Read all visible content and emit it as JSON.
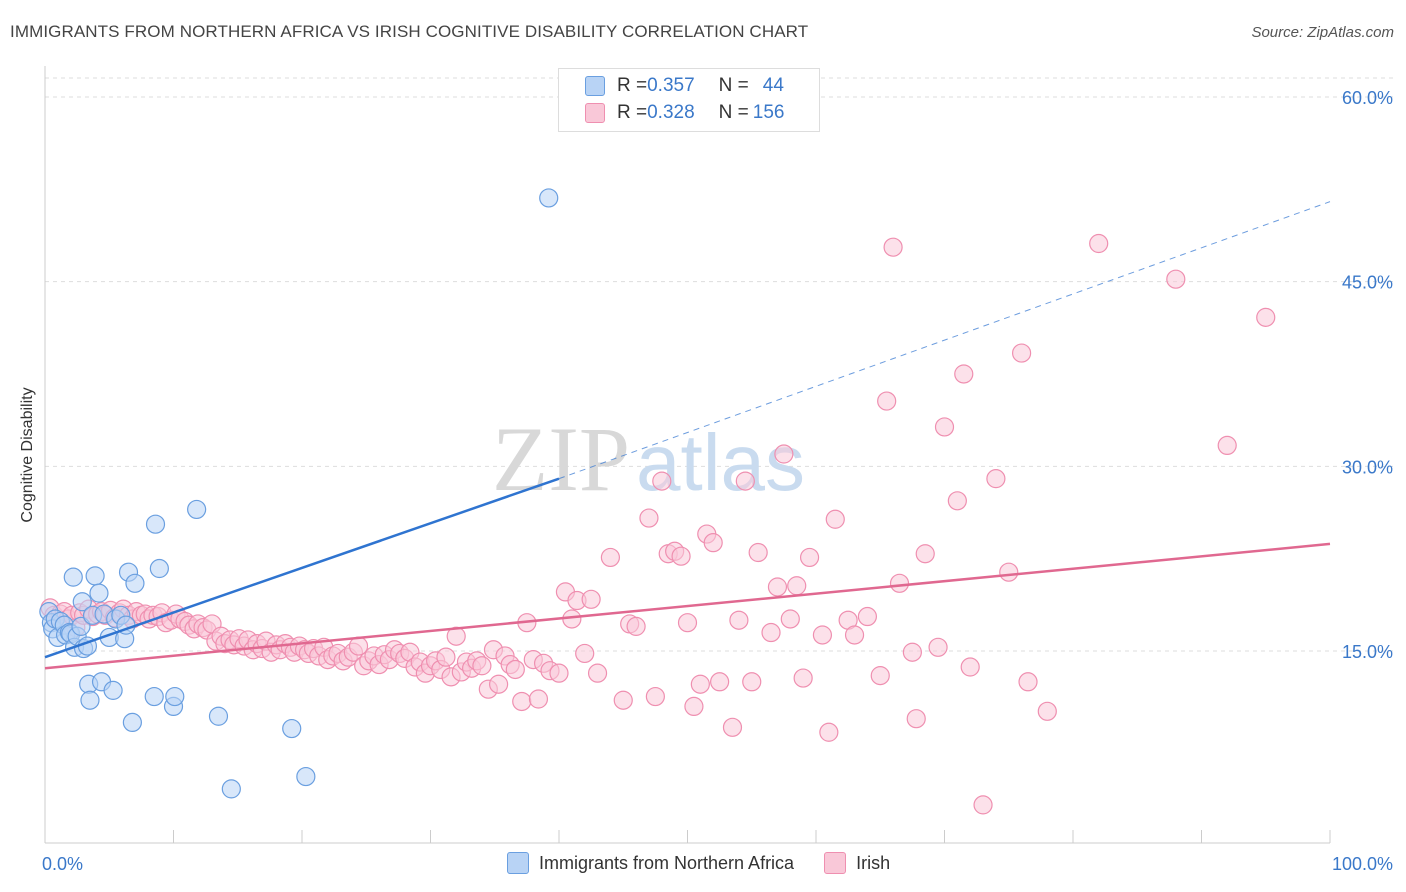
{
  "title": "IMMIGRANTS FROM NORTHERN AFRICA VS IRISH COGNITIVE DISABILITY CORRELATION CHART",
  "source": "Source: ZipAtlas.com",
  "watermark": {
    "part1": "ZIP",
    "part2": "atlas"
  },
  "legend_top": {
    "rows": [
      {
        "r_label": "R = ",
        "r_value": "0.357",
        "n_label": "N = ",
        "n_value": "44"
      },
      {
        "r_label": "R = ",
        "r_value": "0.328",
        "n_label": "N = ",
        "n_value": "156"
      }
    ]
  },
  "colors": {
    "blue_fill": "#b8d3f5",
    "blue_stroke": "#6a9fe0",
    "blue_line": "#2f74d0",
    "pink_fill": "#f9c8d8",
    "pink_stroke": "#ef8fb0",
    "pink_line": "#e06890",
    "axis_label": "#3a78c9",
    "grid": "#dddddd"
  },
  "chart_data": {
    "type": "scatter",
    "title": "IMMIGRANTS FROM NORTHERN AFRICA VS IRISH COGNITIVE DISABILITY CORRELATION CHART",
    "xlabel": "",
    "ylabel": "Cognitive Disability",
    "xlim": [
      0,
      100
    ],
    "ylim": [
      0,
      60
    ],
    "x_tick_labels": [
      "0.0%",
      "100.0%"
    ],
    "y_ticks": [
      15,
      30,
      45,
      60
    ],
    "y_tick_labels": [
      "15.0%",
      "30.0%",
      "45.0%",
      "60.0%"
    ],
    "grid": true,
    "legend_placement": "top-center",
    "series": [
      {
        "name": "Immigrants from Northern Africa",
        "R": 0.357,
        "N": 44,
        "trend": {
          "x0": 0,
          "y0": 14.5,
          "x1": 40,
          "y1": 29.0,
          "dashed_to_x": 100,
          "dashed_to_y": 51.5
        },
        "points": [
          [
            0.3,
            18.2
          ],
          [
            0.5,
            17.3
          ],
          [
            0.6,
            16.8
          ],
          [
            0.8,
            17.6
          ],
          [
            1.0,
            16.1
          ],
          [
            1.2,
            17.4
          ],
          [
            1.5,
            17.1
          ],
          [
            1.6,
            16.3
          ],
          [
            1.9,
            16.5
          ],
          [
            2.0,
            16.4
          ],
          [
            2.2,
            21.0
          ],
          [
            2.3,
            15.3
          ],
          [
            2.5,
            16.2
          ],
          [
            2.8,
            17.0
          ],
          [
            2.9,
            19.0
          ],
          [
            3.0,
            15.2
          ],
          [
            3.3,
            15.4
          ],
          [
            3.4,
            12.3
          ],
          [
            3.5,
            11.0
          ],
          [
            3.7,
            17.9
          ],
          [
            3.9,
            21.1
          ],
          [
            4.2,
            19.7
          ],
          [
            4.4,
            12.5
          ],
          [
            4.6,
            18.0
          ],
          [
            5.0,
            16.1
          ],
          [
            5.3,
            11.8
          ],
          [
            5.5,
            17.6
          ],
          [
            5.9,
            17.9
          ],
          [
            6.2,
            16.0
          ],
          [
            6.3,
            17.1
          ],
          [
            6.5,
            21.4
          ],
          [
            6.8,
            9.2
          ],
          [
            7.0,
            20.5
          ],
          [
            8.5,
            11.3
          ],
          [
            8.6,
            25.3
          ],
          [
            8.9,
            21.7
          ],
          [
            10.0,
            10.5
          ],
          [
            10.1,
            11.3
          ],
          [
            11.8,
            26.5
          ],
          [
            13.5,
            9.7
          ],
          [
            14.5,
            3.8
          ],
          [
            19.2,
            8.7
          ],
          [
            20.3,
            4.8
          ],
          [
            39.2,
            51.8
          ]
        ]
      },
      {
        "name": "Irish",
        "R": 0.328,
        "N": 156,
        "trend": {
          "x0": 0,
          "y0": 13.6,
          "x1": 100,
          "y1": 23.7
        },
        "points": [
          [
            0.4,
            18.5
          ],
          [
            0.7,
            17.9
          ],
          [
            1.2,
            18.0
          ],
          [
            1.5,
            18.2
          ],
          [
            1.8,
            17.6
          ],
          [
            2.1,
            17.9
          ],
          [
            2.4,
            16.9
          ],
          [
            2.7,
            18.1
          ],
          [
            3.0,
            17.9
          ],
          [
            3.4,
            18.4
          ],
          [
            3.7,
            17.8
          ],
          [
            4.1,
            18.0
          ],
          [
            4.4,
            18.2
          ],
          [
            4.7,
            17.9
          ],
          [
            5.1,
            18.3
          ],
          [
            5.4,
            17.7
          ],
          [
            5.8,
            18.1
          ],
          [
            6.1,
            18.4
          ],
          [
            6.5,
            17.9
          ],
          [
            6.8,
            17.6
          ],
          [
            7.1,
            18.2
          ],
          [
            7.5,
            17.9
          ],
          [
            7.8,
            18.0
          ],
          [
            8.1,
            17.6
          ],
          [
            8.4,
            17.9
          ],
          [
            8.8,
            17.8
          ],
          [
            9.1,
            18.1
          ],
          [
            9.4,
            17.3
          ],
          [
            9.8,
            17.5
          ],
          [
            10.2,
            18.0
          ],
          [
            10.5,
            17.6
          ],
          [
            10.9,
            17.4
          ],
          [
            11.2,
            17.1
          ],
          [
            11.6,
            16.8
          ],
          [
            11.9,
            17.2
          ],
          [
            12.3,
            16.9
          ],
          [
            12.6,
            16.7
          ],
          [
            13.0,
            17.2
          ],
          [
            13.3,
            15.8
          ],
          [
            13.7,
            16.2
          ],
          [
            14.0,
            15.6
          ],
          [
            14.4,
            15.9
          ],
          [
            14.7,
            15.5
          ],
          [
            15.1,
            16.0
          ],
          [
            15.5,
            15.4
          ],
          [
            15.8,
            15.9
          ],
          [
            16.2,
            15.1
          ],
          [
            16.5,
            15.6
          ],
          [
            16.9,
            15.2
          ],
          [
            17.2,
            15.8
          ],
          [
            17.6,
            14.9
          ],
          [
            18.0,
            15.5
          ],
          [
            18.3,
            15.1
          ],
          [
            18.7,
            15.6
          ],
          [
            19.1,
            15.3
          ],
          [
            19.4,
            14.9
          ],
          [
            19.8,
            15.4
          ],
          [
            20.2,
            15.1
          ],
          [
            20.5,
            14.8
          ],
          [
            20.9,
            15.2
          ],
          [
            21.3,
            14.6
          ],
          [
            21.7,
            15.3
          ],
          [
            22.0,
            14.3
          ],
          [
            22.4,
            14.6
          ],
          [
            22.8,
            14.8
          ],
          [
            23.2,
            14.2
          ],
          [
            23.6,
            14.5
          ],
          [
            24.0,
            14.9
          ],
          [
            24.4,
            15.4
          ],
          [
            24.8,
            13.8
          ],
          [
            25.2,
            14.2
          ],
          [
            25.6,
            14.6
          ],
          [
            26.0,
            13.9
          ],
          [
            26.4,
            14.7
          ],
          [
            26.8,
            14.3
          ],
          [
            27.2,
            15.1
          ],
          [
            27.6,
            14.8
          ],
          [
            28.0,
            14.4
          ],
          [
            28.4,
            14.9
          ],
          [
            28.8,
            13.7
          ],
          [
            29.2,
            14.1
          ],
          [
            29.6,
            13.2
          ],
          [
            30.0,
            13.8
          ],
          [
            30.4,
            14.2
          ],
          [
            30.8,
            13.5
          ],
          [
            31.2,
            14.5
          ],
          [
            31.6,
            12.9
          ],
          [
            32.0,
            16.2
          ],
          [
            32.4,
            13.3
          ],
          [
            32.8,
            14.1
          ],
          [
            33.2,
            13.6
          ],
          [
            33.6,
            14.2
          ],
          [
            34.0,
            13.8
          ],
          [
            34.5,
            11.9
          ],
          [
            34.9,
            15.1
          ],
          [
            35.3,
            12.3
          ],
          [
            35.8,
            14.6
          ],
          [
            36.2,
            13.9
          ],
          [
            36.6,
            13.5
          ],
          [
            37.1,
            10.9
          ],
          [
            37.5,
            17.3
          ],
          [
            38.0,
            14.3
          ],
          [
            38.4,
            11.1
          ],
          [
            38.8,
            14.0
          ],
          [
            39.3,
            13.4
          ],
          [
            40.0,
            13.2
          ],
          [
            40.5,
            19.8
          ],
          [
            41.0,
            17.6
          ],
          [
            41.4,
            19.1
          ],
          [
            42.0,
            14.8
          ],
          [
            42.5,
            19.2
          ],
          [
            43.0,
            13.2
          ],
          [
            44.0,
            22.6
          ],
          [
            45.0,
            11.0
          ],
          [
            45.5,
            17.2
          ],
          [
            46.0,
            17.0
          ],
          [
            47.0,
            25.8
          ],
          [
            47.5,
            11.3
          ],
          [
            48.0,
            28.8
          ],
          [
            48.5,
            22.9
          ],
          [
            49.0,
            23.1
          ],
          [
            49.5,
            22.7
          ],
          [
            50.0,
            17.3
          ],
          [
            50.5,
            10.5
          ],
          [
            51.0,
            12.3
          ],
          [
            51.5,
            24.5
          ],
          [
            52.0,
            23.8
          ],
          [
            52.5,
            12.5
          ],
          [
            53.5,
            8.8
          ],
          [
            54.0,
            17.5
          ],
          [
            54.5,
            28.8
          ],
          [
            55.0,
            12.5
          ],
          [
            55.5,
            23.0
          ],
          [
            56.5,
            16.5
          ],
          [
            57.0,
            20.2
          ],
          [
            57.5,
            31.0
          ],
          [
            58.0,
            17.6
          ],
          [
            58.5,
            20.3
          ],
          [
            59.0,
            12.8
          ],
          [
            59.5,
            22.6
          ],
          [
            60.5,
            16.3
          ],
          [
            61.0,
            8.4
          ],
          [
            61.5,
            25.7
          ],
          [
            62.5,
            17.5
          ],
          [
            63.0,
            16.3
          ],
          [
            64.0,
            17.8
          ],
          [
            65.0,
            13.0
          ],
          [
            65.5,
            35.3
          ],
          [
            66.5,
            20.5
          ],
          [
            67.5,
            14.9
          ],
          [
            67.8,
            9.5
          ],
          [
            68.5,
            22.9
          ],
          [
            69.5,
            15.3
          ],
          [
            71.0,
            27.2
          ],
          [
            71.5,
            37.5
          ],
          [
            72.0,
            13.7
          ],
          [
            74.0,
            29.0
          ],
          [
            75.0,
            21.4
          ],
          [
            76.0,
            39.2
          ],
          [
            76.5,
            12.5
          ],
          [
            78.0,
            10.1
          ],
          [
            82.0,
            48.1
          ],
          [
            88.0,
            45.2
          ],
          [
            92.0,
            31.7
          ],
          [
            95.0,
            42.1
          ],
          [
            66.0,
            47.8
          ],
          [
            70.0,
            33.2
          ],
          [
            73.0,
            2.5
          ]
        ]
      }
    ]
  },
  "bottom_legend": {
    "series1": "Immigrants from Northern Africa",
    "series2": "Irish"
  }
}
